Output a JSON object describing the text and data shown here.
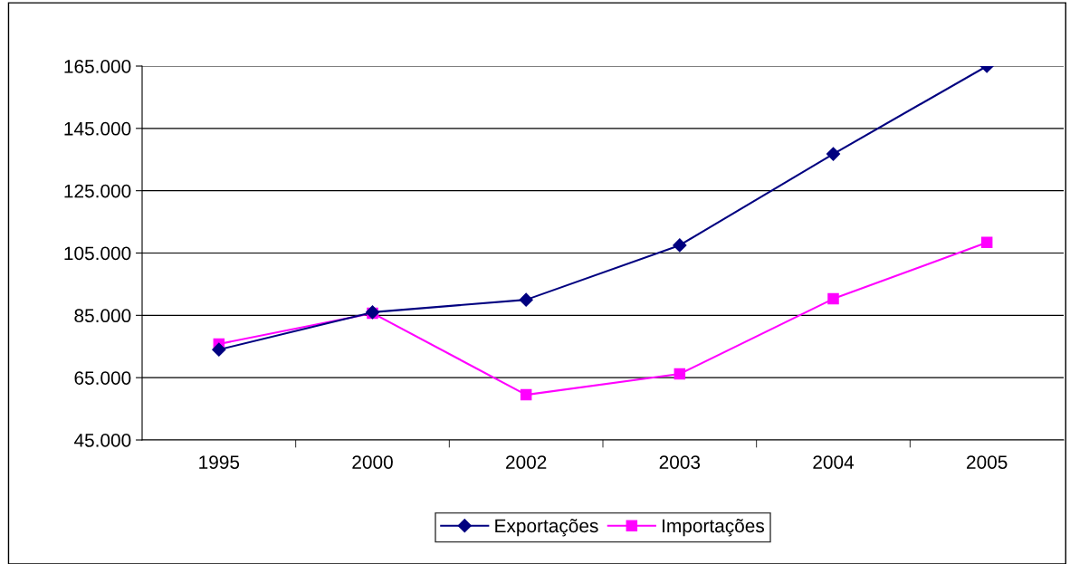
{
  "chart_data": {
    "type": "line",
    "categories": [
      "1995",
      "2000",
      "2002",
      "2003",
      "2004",
      "2005"
    ],
    "series": [
      {
        "name": "Exportações",
        "color": "#000080",
        "marker": "diamond",
        "values": [
          74000,
          86000,
          90000,
          107500,
          136800,
          165000
        ]
      },
      {
        "name": "Importações",
        "color": "#ff00ff",
        "marker": "square",
        "values": [
          75800,
          85700,
          59500,
          66200,
          90300,
          108400
        ]
      }
    ],
    "ylim": [
      45000,
      165000
    ],
    "yticks": [
      {
        "value": 45000,
        "label": "45.000"
      },
      {
        "value": 65000,
        "label": "65.000"
      },
      {
        "value": 85000,
        "label": "85.000"
      },
      {
        "value": 105000,
        "label": "105.000"
      },
      {
        "value": 125000,
        "label": "125.000"
      },
      {
        "value": 145000,
        "label": "145.000"
      },
      {
        "value": 165000,
        "label": "165.000"
      }
    ],
    "grid": "y",
    "legend": "bottom",
    "line_style": "solid"
  }
}
